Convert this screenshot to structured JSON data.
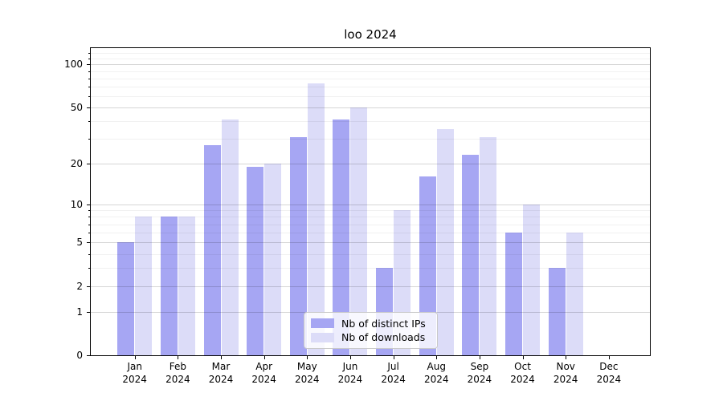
{
  "figure": {
    "title": "loo 2024"
  },
  "chart_data": {
    "type": "bar",
    "title": "loo 2024",
    "categories": [
      "Jan\n2024",
      "Feb\n2024",
      "Mar\n2024",
      "Apr\n2024",
      "May\n2024",
      "Jun\n2024",
      "Jul\n2024",
      "Aug\n2024",
      "Sep\n2024",
      "Oct\n2024",
      "Nov\n2024",
      "Dec\n2024"
    ],
    "series": [
      {
        "name": "Nb of distinct IPs",
        "color": "#a6a6f3",
        "values": [
          5,
          8,
          27,
          19,
          31,
          41,
          3,
          16,
          23,
          6,
          3,
          0
        ]
      },
      {
        "name": "Nb of downloads",
        "color": "#dcdcf8",
        "values": [
          8,
          8,
          41,
          20,
          74,
          50,
          9,
          35,
          31,
          10,
          6,
          0
        ]
      }
    ],
    "yscale": "log1p",
    "ylim": [
      0,
      130
    ],
    "yticks": [
      0,
      1,
      2,
      5,
      10,
      20,
      50,
      100
    ],
    "yticks_minor": [
      3,
      4,
      6,
      7,
      8,
      9,
      30,
      40,
      60,
      70,
      80,
      90,
      110,
      120
    ],
    "grid": "horizontal-on-top",
    "legend_position": "lower center",
    "xlabel": "",
    "ylabel": ""
  }
}
